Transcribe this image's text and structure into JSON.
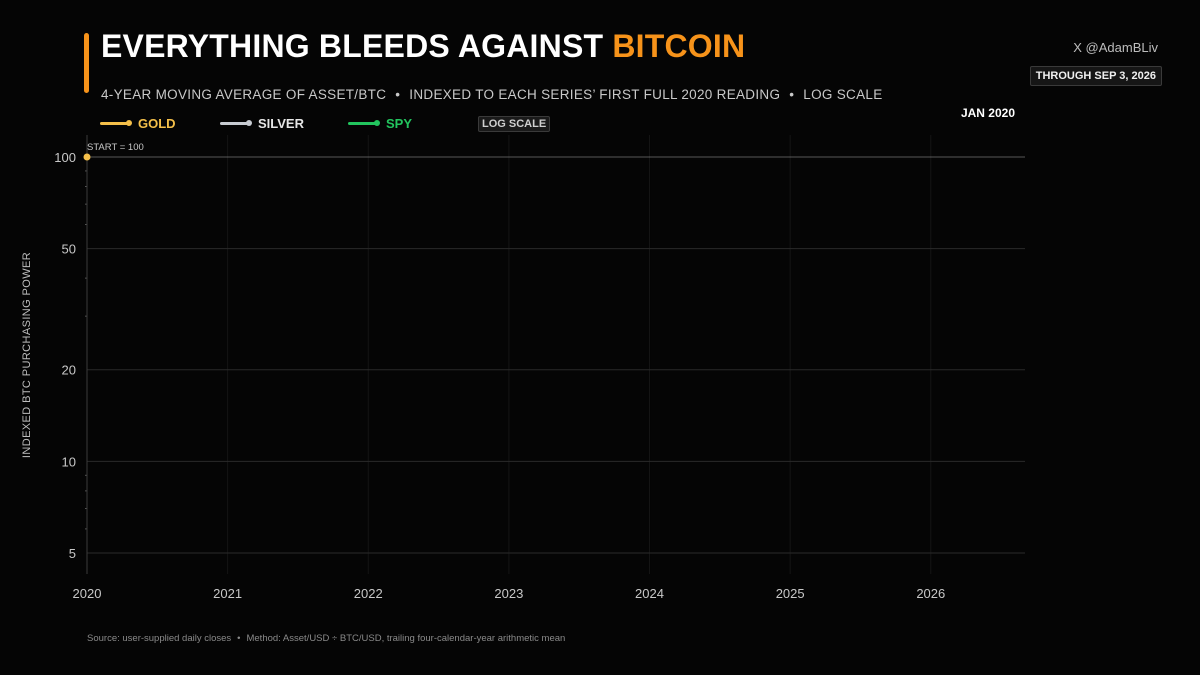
{
  "header": {
    "title_main": "EVERYTHING BLEEDS AGAINST ",
    "title_highlight": "BITCOIN",
    "subtitle_parts": [
      "4-YEAR MOVING AVERAGE OF ASSET/BTC",
      "INDEXED TO EACH SERIES’ FIRST FULL 2020 READING",
      "LOG SCALE"
    ],
    "separator": "•",
    "handle": "X @AdamBLiv",
    "through": "THROUGH SEP 3, 2026",
    "current_date": "JAN 2020",
    "log_badge": "LOG SCALE"
  },
  "colors": {
    "accent": "#f7931a",
    "gold": "#f5c04a",
    "silver": "#c8ccd2",
    "spy": "#22c55e",
    "grid": "#2a2a2a",
    "baseline": "#9a9a9a"
  },
  "chart_data": {
    "type": "line",
    "scale": "log",
    "ylabel": "INDEXED BTC PURCHASING POWER",
    "xlabel": "",
    "x_ticks": [
      "2020",
      "2021",
      "2022",
      "2023",
      "2024",
      "2025",
      "2026"
    ],
    "xlim": [
      2020.0,
      2026.67
    ],
    "y_ticks": [
      100,
      50,
      20,
      10,
      5
    ],
    "ylim": [
      4,
      100
    ],
    "baseline": {
      "value": 100,
      "label": "START = 100"
    },
    "legend_position": "top-left",
    "series": [
      {
        "name": "GOLD",
        "color_key": "gold",
        "points": [
          {
            "x": 2020.0,
            "y": 100
          }
        ]
      },
      {
        "name": "SILVER",
        "color_key": "silver",
        "points": []
      },
      {
        "name": "SPY",
        "color_key": "spy",
        "points": []
      }
    ]
  },
  "footer": {
    "source": "Source: user-supplied daily closes",
    "method": "Method: Asset/USD ÷ BTC/USD, trailing four-calendar-year arithmetic mean"
  }
}
